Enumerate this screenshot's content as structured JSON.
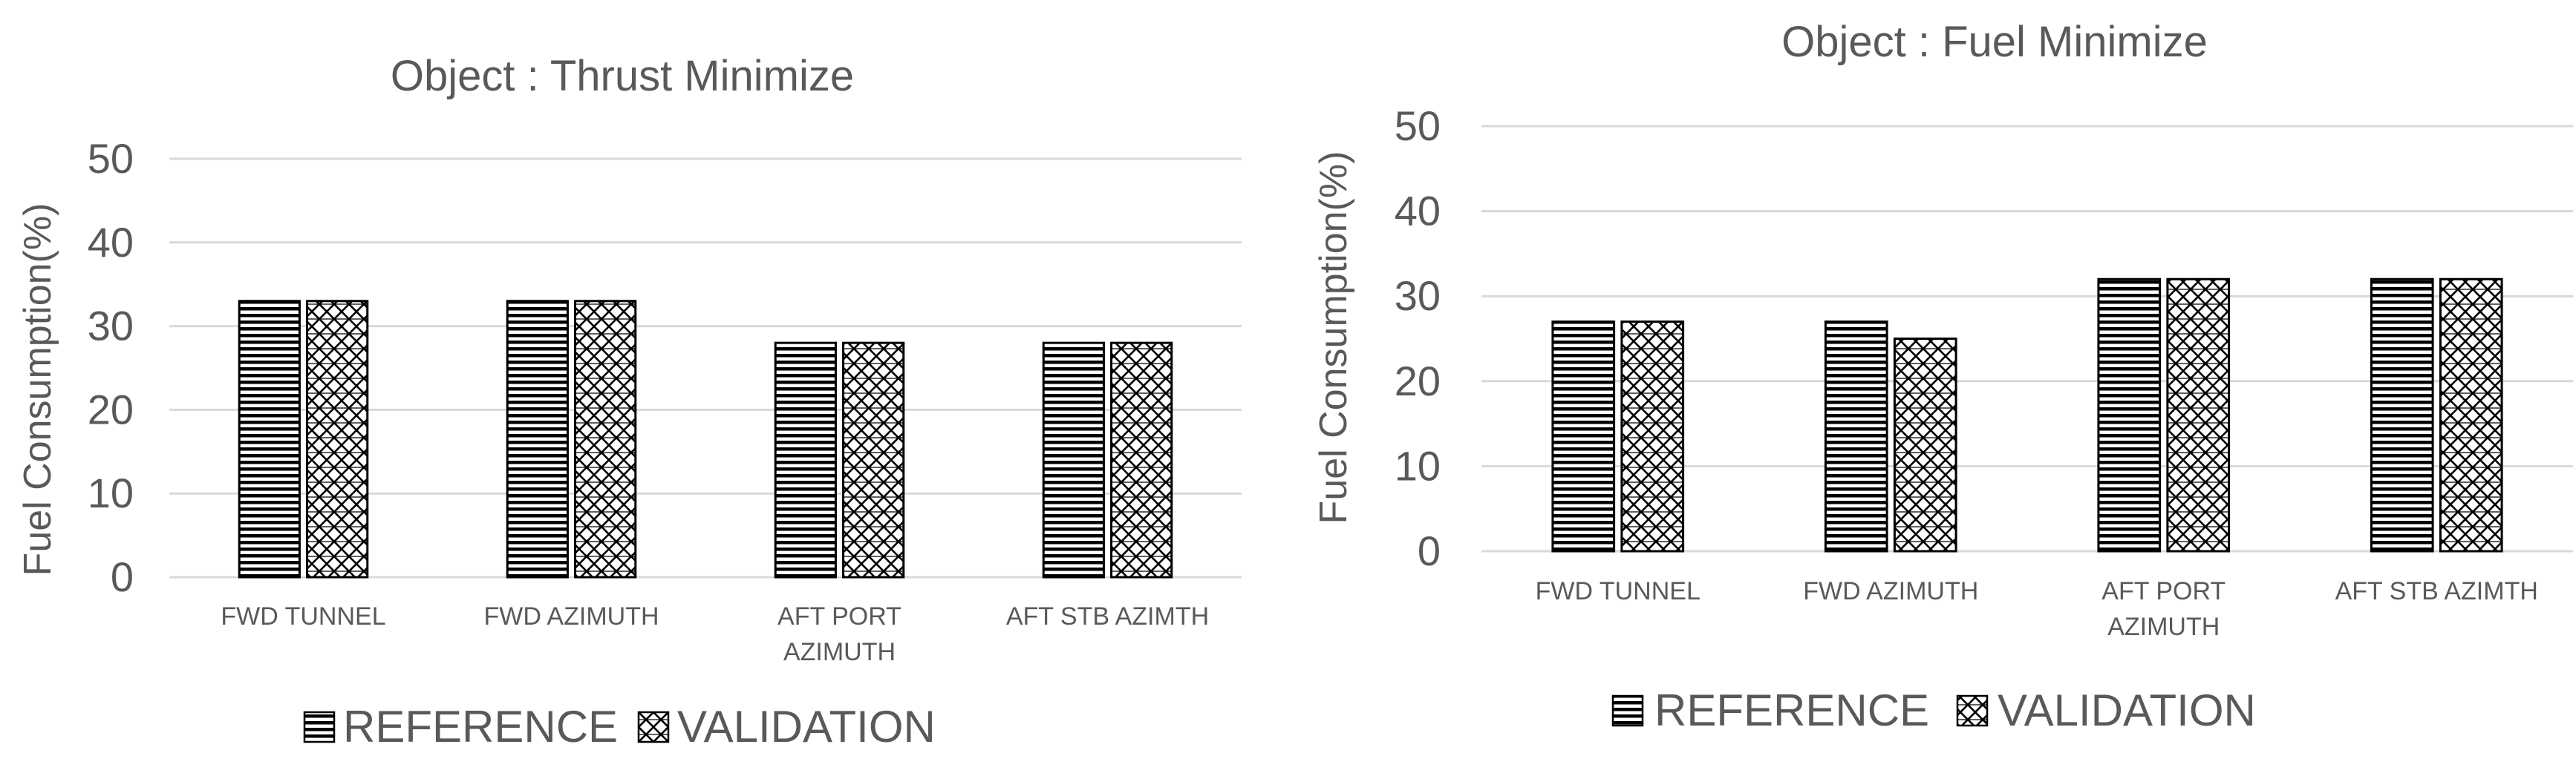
{
  "chart_data": [
    {
      "type": "bar",
      "title": "Object : Thrust Minimize",
      "xlabel": "",
      "ylabel": "Fuel Consumption(%)",
      "ylim": [
        0,
        50
      ],
      "yticks": [
        0,
        10,
        20,
        30,
        40,
        50
      ],
      "grid": true,
      "legend_position": "bottom",
      "categories": [
        [
          "FWD TUNNEL"
        ],
        [
          "FWD AZIMUTH"
        ],
        [
          "AFT PORT",
          "AZIMUTH"
        ],
        [
          "AFT STB AZIMTH"
        ]
      ],
      "series": [
        {
          "name": "REFERENCE",
          "pattern": "horizontal-lines",
          "values": [
            33,
            33,
            28,
            28
          ]
        },
        {
          "name": "VALIDATION",
          "pattern": "zigzag-hatch",
          "values": [
            33,
            33,
            28,
            28
          ]
        }
      ]
    },
    {
      "type": "bar",
      "title": "Object : Fuel Minimize",
      "xlabel": "",
      "ylabel": "Fuel Consumption(%)",
      "ylim": [
        0,
        50
      ],
      "yticks": [
        0,
        10,
        20,
        30,
        40,
        50
      ],
      "grid": true,
      "legend_position": "bottom",
      "categories": [
        [
          "FWD TUNNEL"
        ],
        [
          "FWD AZIMUTH"
        ],
        [
          "AFT PORT",
          "AZIMUTH"
        ],
        [
          "AFT STB AZIMTH"
        ]
      ],
      "series": [
        {
          "name": "REFERENCE",
          "pattern": "horizontal-lines",
          "values": [
            27,
            27,
            32,
            32
          ]
        },
        {
          "name": "VALIDATION",
          "pattern": "zigzag-hatch",
          "values": [
            27,
            25,
            32,
            32
          ]
        }
      ]
    }
  ],
  "colors": {
    "text": "#595959",
    "grid": "#d9d9d9",
    "bar_outline": "#000000",
    "pattern": "#000000",
    "background": "#ffffff"
  }
}
